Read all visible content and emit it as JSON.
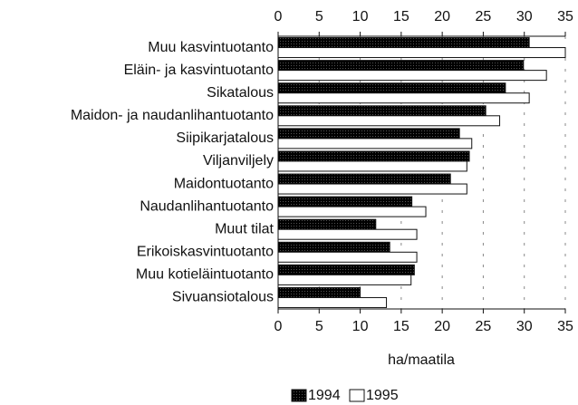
{
  "chart_data": {
    "type": "hbar",
    "categories": [
      "Muu kasvintuotanto",
      "Eläin- ja kasvintuotanto",
      "Sikatalous",
      "Maidon- ja naudanlihantuotanto",
      "Siipikarjatalous",
      "Viljanviljely",
      "Maidontuotanto",
      "Naudanlihantuotanto",
      "Muut tilat",
      "Erikoiskasvintuotanto",
      "Muu kotieläintuotanto",
      "Sivuansiotalous"
    ],
    "series": [
      {
        "name": "1994",
        "color": "#a8a8a8",
        "values": [
          30.6,
          29.9,
          27.7,
          25.3,
          22.1,
          23.3,
          21.0,
          16.3,
          11.9,
          13.6,
          16.6,
          10.0
        ]
      },
      {
        "name": "1995",
        "color": "#ffffff",
        "values": [
          35.0,
          32.7,
          30.6,
          27.0,
          23.6,
          23.0,
          23.0,
          18.0,
          16.9,
          16.9,
          16.2,
          13.2
        ]
      }
    ],
    "xlabel": "ha/maatila",
    "xlim": [
      0,
      35
    ],
    "xticks": [
      0,
      5,
      10,
      15,
      20,
      25,
      30,
      35
    ],
    "grid": true,
    "legend": "bottom"
  }
}
